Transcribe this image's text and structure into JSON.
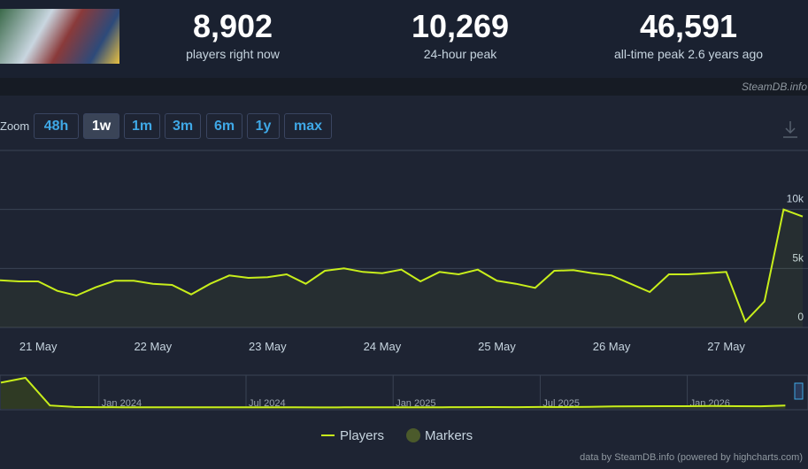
{
  "header": {
    "stats": [
      {
        "value": "8,902",
        "label": "players right now"
      },
      {
        "value": "10,269",
        "label": "24-hour peak"
      },
      {
        "value": "46,591",
        "label": "all-time peak 2.6 years ago"
      }
    ],
    "watermark": "SteamDB.info"
  },
  "zoom": {
    "label": "Zoom",
    "buttons": [
      "48h",
      "1w",
      "1m",
      "3m",
      "6m",
      "1y",
      "max"
    ],
    "active": 1
  },
  "chart_data": [
    {
      "type": "line",
      "categories": [
        null,
        null,
        "21 May",
        null,
        null,
        null,
        null,
        null,
        "22 May",
        null,
        null,
        null,
        null,
        null,
        "23 May",
        null,
        null,
        null,
        null,
        null,
        "24 May",
        null,
        null,
        null,
        null,
        null,
        "25 May",
        null,
        null,
        null,
        null,
        null,
        "26 May",
        null,
        null,
        null,
        null,
        null,
        "27 May",
        null,
        null,
        null,
        null
      ],
      "series": [
        {
          "name": "Players",
          "color": "#c8ee1b",
          "values": [
            4000,
            3900,
            3900,
            3100,
            2700,
            3400,
            3950,
            3950,
            3700,
            3600,
            2800,
            3700,
            4400,
            4200,
            4250,
            4500,
            3700,
            4800,
            5000,
            4700,
            4600,
            4900,
            3900,
            4700,
            4500,
            4900,
            3950,
            3700,
            3350,
            4800,
            4850,
            4600,
            4400,
            3700,
            3000,
            4500,
            4500,
            4600,
            4700,
            500,
            2200,
            10000,
            9400
          ]
        }
      ],
      "markers": {
        "name": "Markers",
        "color": "#4b5a2b"
      },
      "ylim": [
        0,
        15000
      ],
      "yticks": [
        0,
        {
          "value": 5000,
          "label": "5k"
        },
        {
          "value": 10000,
          "label": "10k"
        }
      ],
      "grid": true
    },
    {
      "type": "line",
      "categories": [
        null,
        null,
        null,
        null,
        "Jan 2024",
        null,
        null,
        null,
        null,
        null,
        "Jul 2024",
        null,
        null,
        null,
        null,
        null,
        "Jan 2025",
        null,
        null,
        null,
        null,
        null,
        "Jul 2025",
        null,
        null,
        null,
        null,
        null,
        "Jan 2026",
        null,
        null,
        null,
        null
      ],
      "series": [
        {
          "color": "#c8ee1b",
          "values": [
            39000,
            46000,
            5000,
            2800,
            2500,
            2400,
            2300,
            2200,
            2300,
            2400,
            2200,
            2300,
            2200,
            2100,
            2200,
            2300,
            2200,
            2300,
            2400,
            2500,
            2600,
            2500,
            2700,
            2600,
            3000,
            3500,
            3800,
            4000,
            3900,
            4200,
            4000,
            3800,
            5000
          ]
        }
      ],
      "ylim": [
        0,
        50000
      ],
      "grid": true
    }
  ],
  "credits": "data by SteamDB.info (powered by highcharts.com)"
}
